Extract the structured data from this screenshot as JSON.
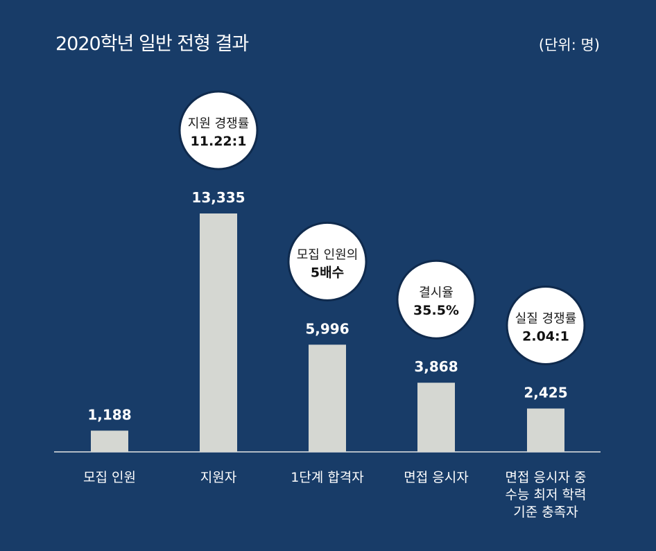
{
  "title": "2020학년 일반 전형 결과",
  "unit": "(단위: 명)",
  "colors": {
    "background": "#183c68",
    "bar": "#d5d7d2",
    "bubble": "#ffffff",
    "text": "#ffffff"
  },
  "chart_data": {
    "type": "bar",
    "categories": [
      [
        "모집 인원"
      ],
      [
        "지원자"
      ],
      [
        "1단계 합격자"
      ],
      [
        "면접 응시자"
      ],
      [
        "면접 응시자 중",
        "수능 최저 학력",
        "기준 충족자"
      ]
    ],
    "values": [
      1188,
      13335,
      5996,
      3868,
      2425
    ],
    "value_labels": [
      "1,188",
      "13,335",
      "5,996",
      "3,868",
      "2,425"
    ],
    "ylim": [
      0,
      13335
    ],
    "annotations": [
      null,
      {
        "text": "지원 경쟁률",
        "value": "11.22:1"
      },
      {
        "text": "모집 인원의",
        "value": "5배수"
      },
      {
        "text": "결시율",
        "value": "35.5%"
      },
      {
        "text": "실질 경쟁률",
        "value": "2.04:1"
      }
    ],
    "grid": false,
    "legend": "none"
  }
}
